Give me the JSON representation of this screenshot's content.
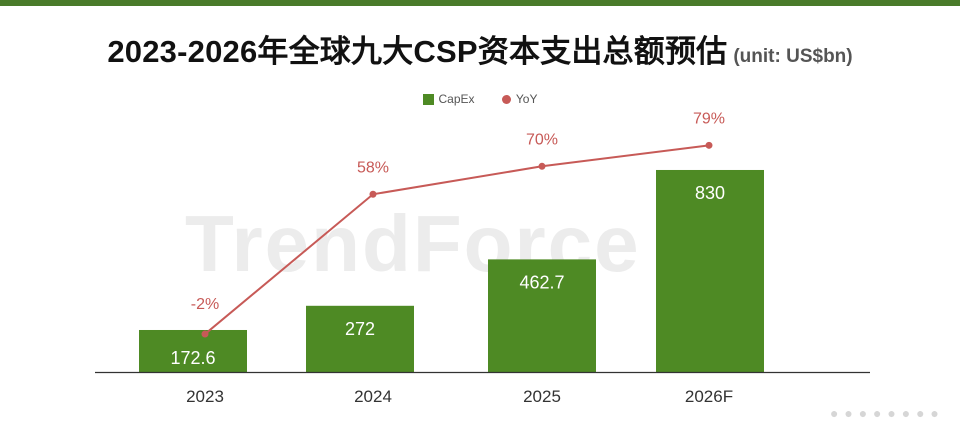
{
  "title": "2023-2026年全球九大CSP资本支出总额预估",
  "unit": "(unit: US$bn)",
  "watermark": "TrendForce",
  "colors": {
    "accent_bar": "#4a7b2a",
    "bar": "#4e8a24",
    "line": "#c75a57"
  },
  "chart_data": {
    "type": "bar",
    "title": "2023-2026年全球九大CSP资本支出总额预估",
    "subtitle": "(unit: US$bn)",
    "categories": [
      "2023",
      "2024",
      "2025",
      "2026F"
    ],
    "series": [
      {
        "name": "CapEx",
        "type": "bar",
        "values": [
          172.6,
          272,
          462.7,
          830
        ],
        "labels": [
          "172.6",
          "272",
          "462.7",
          "830"
        ]
      },
      {
        "name": "YoY",
        "type": "line",
        "values": [
          -2,
          58,
          70,
          79
        ],
        "labels": [
          "-2%",
          "58%",
          "70%",
          "79%"
        ]
      }
    ],
    "legend": [
      "CapEx",
      "YoY"
    ],
    "legend_position": "top",
    "grid": false,
    "ylim": [
      0,
      1000
    ]
  }
}
